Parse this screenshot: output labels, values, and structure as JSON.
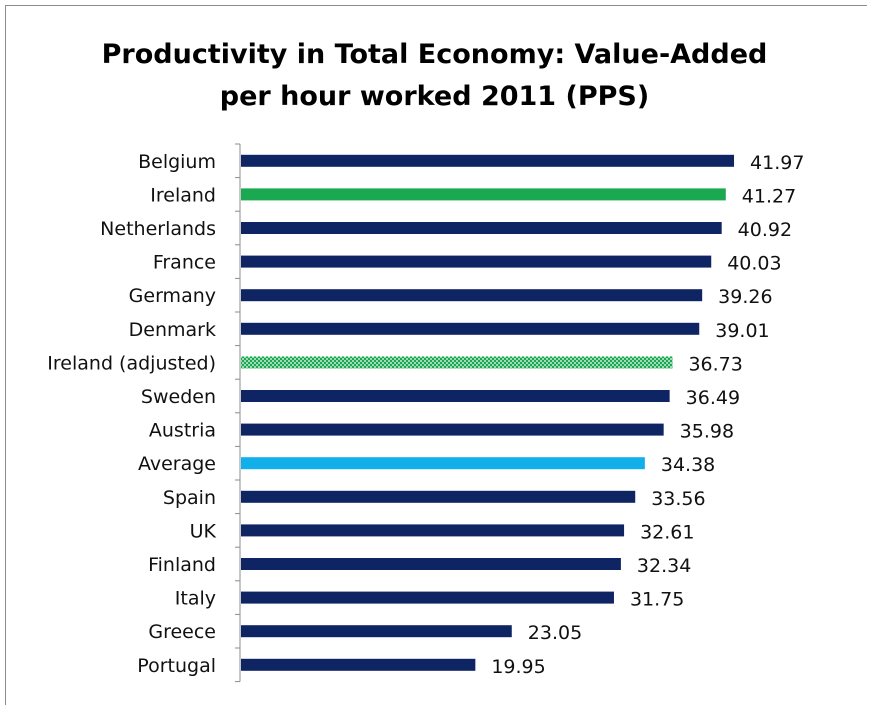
{
  "chart_data": {
    "type": "bar",
    "orientation": "horizontal",
    "title": [
      "Productivity in Total Economy:  Value-Added",
      "per hour worked 2011 (PPS)"
    ],
    "categories": [
      "Belgium",
      "Ireland",
      "Netherlands",
      "France",
      "Germany",
      "Denmark",
      "Ireland (adjusted)",
      "Sweden",
      "Austria",
      "Average",
      "Spain",
      "UK",
      "Finland",
      "Italy",
      "Greece",
      "Portugal"
    ],
    "values": [
      41.97,
      41.27,
      40.92,
      40.03,
      39.26,
      39.01,
      36.73,
      36.49,
      35.98,
      34.38,
      33.56,
      32.61,
      32.34,
      31.75,
      23.05,
      19.95
    ],
    "bar_colors": [
      "#0f2463",
      "#1aa850",
      "#0f2463",
      "#0f2463",
      "#0f2463",
      "#0f2463",
      "#1aa850",
      "#0f2463",
      "#0f2463",
      "#12b0ea",
      "#0f2463",
      "#0f2463",
      "#0f2463",
      "#0f2463",
      "#0f2463",
      "#0f2463"
    ],
    "patterned": [
      false,
      false,
      false,
      false,
      false,
      false,
      true,
      false,
      false,
      false,
      false,
      false,
      false,
      false,
      false,
      false
    ],
    "xlim": [
      0,
      45
    ],
    "grid": false,
    "legend": "none"
  }
}
